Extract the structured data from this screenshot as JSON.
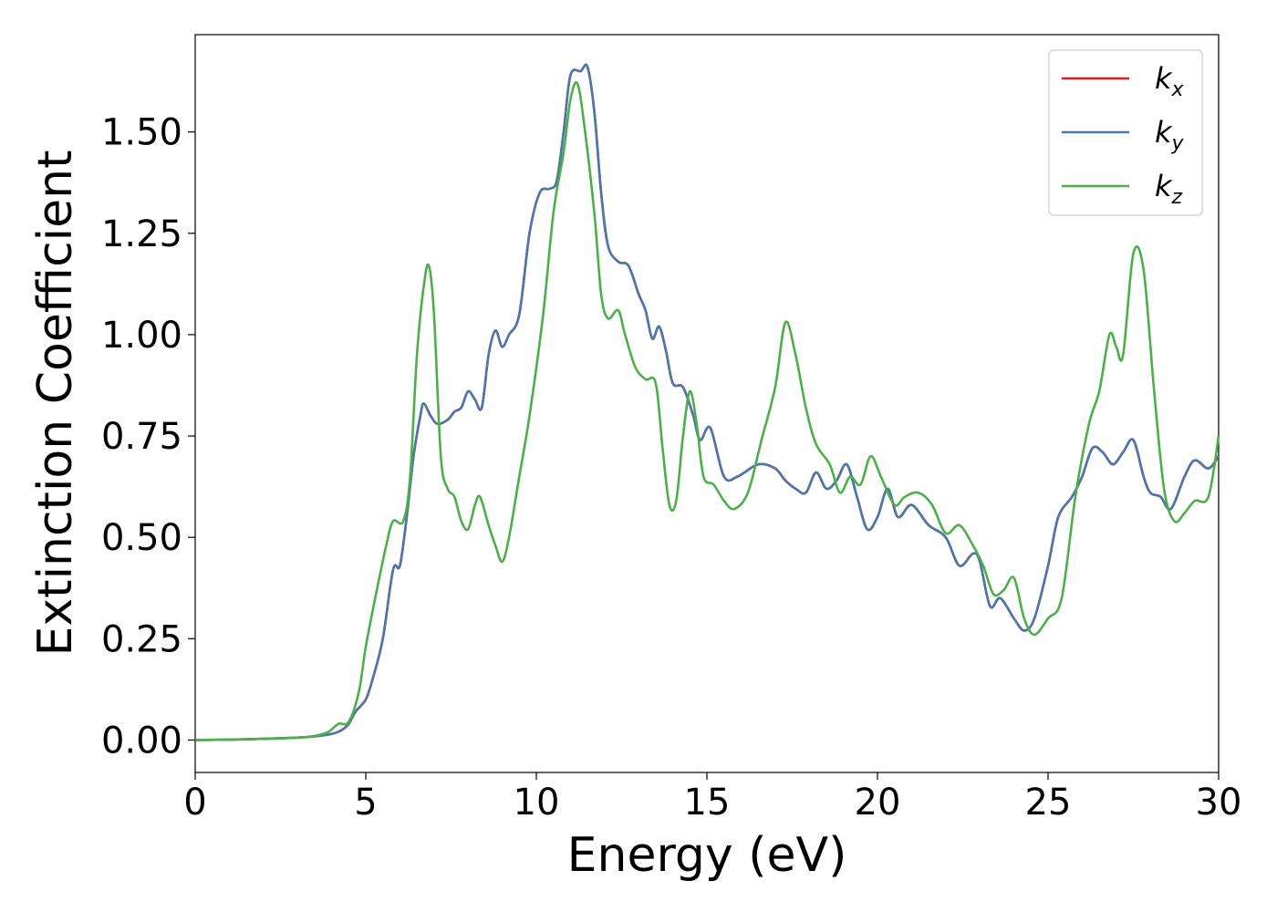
{
  "chart_data": {
    "type": "line",
    "title": "",
    "xlabel": "Energy (eV)",
    "ylabel": "Extinction Coefficient",
    "xlim": [
      0,
      30
    ],
    "ylim": [
      -0.08,
      1.74
    ],
    "xticks": [
      0,
      5,
      10,
      15,
      20,
      25,
      30
    ],
    "xtick_labels": [
      "0",
      "5",
      "10",
      "15",
      "20",
      "25",
      "30"
    ],
    "yticks": [
      0,
      0.25,
      0.5,
      0.75,
      1.0,
      1.25,
      1.5
    ],
    "ytick_labels": [
      "0.00",
      "0.25",
      "0.50",
      "0.75",
      "1.00",
      "1.25",
      "1.50"
    ],
    "grid": false,
    "legend_position": "top-right",
    "series": [
      {
        "name": "k_x",
        "label_base": "k",
        "label_sub": "x",
        "color": "#e41a1c",
        "points": [
          [
            0,
            0
          ],
          [
            1,
            0.001
          ],
          [
            2,
            0.003
          ],
          [
            3,
            0.006
          ],
          [
            3.5,
            0.009
          ],
          [
            4,
            0.015
          ],
          [
            4.3,
            0.025
          ],
          [
            4.5,
            0.04
          ],
          [
            4.7,
            0.07
          ],
          [
            5,
            0.1
          ],
          [
            5.2,
            0.15
          ],
          [
            5.5,
            0.25
          ],
          [
            5.8,
            0.42
          ],
          [
            6,
            0.43
          ],
          [
            6.2,
            0.55
          ],
          [
            6.4,
            0.7
          ],
          [
            6.6,
            0.8
          ],
          [
            6.7,
            0.83
          ],
          [
            6.9,
            0.8
          ],
          [
            7.1,
            0.78
          ],
          [
            7.4,
            0.79
          ],
          [
            7.6,
            0.81
          ],
          [
            7.8,
            0.82
          ],
          [
            8,
            0.86
          ],
          [
            8.2,
            0.84
          ],
          [
            8.4,
            0.82
          ],
          [
            8.6,
            0.95
          ],
          [
            8.8,
            1.01
          ],
          [
            9,
            0.97
          ],
          [
            9.2,
            1
          ],
          [
            9.5,
            1.05
          ],
          [
            9.8,
            1.25
          ],
          [
            10.1,
            1.35
          ],
          [
            10.4,
            1.36
          ],
          [
            10.6,
            1.38
          ],
          [
            10.8,
            1.5
          ],
          [
            11,
            1.64
          ],
          [
            11.3,
            1.65
          ],
          [
            11.5,
            1.66
          ],
          [
            11.7,
            1.55
          ],
          [
            11.9,
            1.35
          ],
          [
            12.1,
            1.22
          ],
          [
            12.4,
            1.18
          ],
          [
            12.7,
            1.17
          ],
          [
            13,
            1.1
          ],
          [
            13.2,
            1.06
          ],
          [
            13.4,
            0.99
          ],
          [
            13.6,
            1.02
          ],
          [
            13.8,
            0.96
          ],
          [
            14,
            0.88
          ],
          [
            14.3,
            0.87
          ],
          [
            14.6,
            0.8
          ],
          [
            14.8,
            0.74
          ],
          [
            15.1,
            0.77
          ],
          [
            15.5,
            0.65
          ],
          [
            15.9,
            0.65
          ],
          [
            16.5,
            0.68
          ],
          [
            17,
            0.67
          ],
          [
            17.3,
            0.64
          ],
          [
            17.6,
            0.62
          ],
          [
            17.9,
            0.61
          ],
          [
            18.2,
            0.66
          ],
          [
            18.5,
            0.62
          ],
          [
            18.8,
            0.64
          ],
          [
            19.1,
            0.68
          ],
          [
            19.4,
            0.6
          ],
          [
            19.7,
            0.52
          ],
          [
            20,
            0.55
          ],
          [
            20.3,
            0.62
          ],
          [
            20.6,
            0.55
          ],
          [
            21,
            0.58
          ],
          [
            21.5,
            0.53
          ],
          [
            22,
            0.5
          ],
          [
            22.4,
            0.43
          ],
          [
            22.8,
            0.46
          ],
          [
            23,
            0.44
          ],
          [
            23.3,
            0.33
          ],
          [
            23.6,
            0.35
          ],
          [
            24,
            0.3
          ],
          [
            24.3,
            0.27
          ],
          [
            24.6,
            0.3
          ],
          [
            25,
            0.43
          ],
          [
            25.3,
            0.55
          ],
          [
            25.7,
            0.6
          ],
          [
            26,
            0.65
          ],
          [
            26.3,
            0.72
          ],
          [
            26.6,
            0.71
          ],
          [
            26.9,
            0.68
          ],
          [
            27.2,
            0.71
          ],
          [
            27.5,
            0.74
          ],
          [
            27.8,
            0.65
          ],
          [
            28,
            0.61
          ],
          [
            28.3,
            0.6
          ],
          [
            28.6,
            0.57
          ],
          [
            29,
            0.65
          ],
          [
            29.3,
            0.69
          ],
          [
            29.7,
            0.67
          ],
          [
            30,
            0.7
          ]
        ]
      },
      {
        "name": "k_y",
        "label_base": "k",
        "label_sub": "y",
        "color": "#4a78ad",
        "points": [
          [
            0,
            0
          ],
          [
            1,
            0.001
          ],
          [
            2,
            0.003
          ],
          [
            3,
            0.006
          ],
          [
            3.5,
            0.009
          ],
          [
            4,
            0.015
          ],
          [
            4.3,
            0.025
          ],
          [
            4.5,
            0.04
          ],
          [
            4.7,
            0.07
          ],
          [
            5,
            0.1
          ],
          [
            5.2,
            0.15
          ],
          [
            5.5,
            0.25
          ],
          [
            5.8,
            0.42
          ],
          [
            6,
            0.43
          ],
          [
            6.2,
            0.55
          ],
          [
            6.4,
            0.7
          ],
          [
            6.6,
            0.8
          ],
          [
            6.7,
            0.83
          ],
          [
            6.9,
            0.8
          ],
          [
            7.1,
            0.78
          ],
          [
            7.4,
            0.79
          ],
          [
            7.6,
            0.81
          ],
          [
            7.8,
            0.82
          ],
          [
            8,
            0.86
          ],
          [
            8.2,
            0.84
          ],
          [
            8.4,
            0.82
          ],
          [
            8.6,
            0.95
          ],
          [
            8.8,
            1.01
          ],
          [
            9,
            0.97
          ],
          [
            9.2,
            1
          ],
          [
            9.5,
            1.05
          ],
          [
            9.8,
            1.25
          ],
          [
            10.1,
            1.35
          ],
          [
            10.4,
            1.36
          ],
          [
            10.6,
            1.38
          ],
          [
            10.8,
            1.5
          ],
          [
            11,
            1.64
          ],
          [
            11.3,
            1.65
          ],
          [
            11.5,
            1.66
          ],
          [
            11.7,
            1.55
          ],
          [
            11.9,
            1.35
          ],
          [
            12.1,
            1.22
          ],
          [
            12.4,
            1.18
          ],
          [
            12.7,
            1.17
          ],
          [
            13,
            1.1
          ],
          [
            13.2,
            1.06
          ],
          [
            13.4,
            0.99
          ],
          [
            13.6,
            1.02
          ],
          [
            13.8,
            0.96
          ],
          [
            14,
            0.88
          ],
          [
            14.3,
            0.87
          ],
          [
            14.6,
            0.8
          ],
          [
            14.8,
            0.74
          ],
          [
            15.1,
            0.77
          ],
          [
            15.5,
            0.65
          ],
          [
            15.9,
            0.65
          ],
          [
            16.5,
            0.68
          ],
          [
            17,
            0.67
          ],
          [
            17.3,
            0.64
          ],
          [
            17.6,
            0.62
          ],
          [
            17.9,
            0.61
          ],
          [
            18.2,
            0.66
          ],
          [
            18.5,
            0.62
          ],
          [
            18.8,
            0.64
          ],
          [
            19.1,
            0.68
          ],
          [
            19.4,
            0.6
          ],
          [
            19.7,
            0.52
          ],
          [
            20,
            0.55
          ],
          [
            20.3,
            0.62
          ],
          [
            20.6,
            0.55
          ],
          [
            21,
            0.58
          ],
          [
            21.5,
            0.53
          ],
          [
            22,
            0.5
          ],
          [
            22.4,
            0.43
          ],
          [
            22.8,
            0.46
          ],
          [
            23,
            0.44
          ],
          [
            23.3,
            0.33
          ],
          [
            23.6,
            0.35
          ],
          [
            24,
            0.3
          ],
          [
            24.3,
            0.27
          ],
          [
            24.6,
            0.3
          ],
          [
            25,
            0.43
          ],
          [
            25.3,
            0.55
          ],
          [
            25.7,
            0.6
          ],
          [
            26,
            0.65
          ],
          [
            26.3,
            0.72
          ],
          [
            26.6,
            0.71
          ],
          [
            26.9,
            0.68
          ],
          [
            27.2,
            0.71
          ],
          [
            27.5,
            0.74
          ],
          [
            27.8,
            0.65
          ],
          [
            28,
            0.61
          ],
          [
            28.3,
            0.6
          ],
          [
            28.6,
            0.57
          ],
          [
            29,
            0.65
          ],
          [
            29.3,
            0.69
          ],
          [
            29.7,
            0.67
          ],
          [
            30,
            0.7
          ]
        ]
      },
      {
        "name": "k_z",
        "label_base": "k",
        "label_sub": "z",
        "color": "#4daf4a",
        "points": [
          [
            0,
            0
          ],
          [
            1,
            0.001
          ],
          [
            2,
            0.003
          ],
          [
            3,
            0.006
          ],
          [
            3.5,
            0.01
          ],
          [
            3.9,
            0.02
          ],
          [
            4.2,
            0.04
          ],
          [
            4.5,
            0.045
          ],
          [
            4.8,
            0.12
          ],
          [
            5,
            0.23
          ],
          [
            5.3,
            0.36
          ],
          [
            5.6,
            0.48
          ],
          [
            5.8,
            0.54
          ],
          [
            6.1,
            0.54
          ],
          [
            6.3,
            0.65
          ],
          [
            6.5,
            0.95
          ],
          [
            6.7,
            1.12
          ],
          [
            6.85,
            1.17
          ],
          [
            7,
            1.05
          ],
          [
            7.2,
            0.7
          ],
          [
            7.4,
            0.62
          ],
          [
            7.6,
            0.6
          ],
          [
            7.8,
            0.54
          ],
          [
            8,
            0.52
          ],
          [
            8.2,
            0.58
          ],
          [
            8.35,
            0.6
          ],
          [
            8.6,
            0.53
          ],
          [
            8.8,
            0.48
          ],
          [
            9,
            0.44
          ],
          [
            9.2,
            0.5
          ],
          [
            9.5,
            0.65
          ],
          [
            9.8,
            0.8
          ],
          [
            10.2,
            1.05
          ],
          [
            10.5,
            1.3
          ],
          [
            10.8,
            1.45
          ],
          [
            11,
            1.58
          ],
          [
            11.2,
            1.62
          ],
          [
            11.4,
            1.52
          ],
          [
            11.7,
            1.3
          ],
          [
            11.9,
            1.1
          ],
          [
            12.1,
            1.04
          ],
          [
            12.4,
            1.06
          ],
          [
            12.6,
            1
          ],
          [
            12.9,
            0.92
          ],
          [
            13.2,
            0.89
          ],
          [
            13.5,
            0.88
          ],
          [
            13.7,
            0.72
          ],
          [
            13.9,
            0.58
          ],
          [
            14.1,
            0.59
          ],
          [
            14.3,
            0.75
          ],
          [
            14.5,
            0.86
          ],
          [
            14.7,
            0.78
          ],
          [
            14.9,
            0.65
          ],
          [
            15.2,
            0.63
          ],
          [
            15.5,
            0.59
          ],
          [
            15.8,
            0.57
          ],
          [
            16.2,
            0.61
          ],
          [
            16.6,
            0.74
          ],
          [
            17,
            0.87
          ],
          [
            17.3,
            1.03
          ],
          [
            17.6,
            0.95
          ],
          [
            17.9,
            0.82
          ],
          [
            18.2,
            0.73
          ],
          [
            18.6,
            0.68
          ],
          [
            18.9,
            0.61
          ],
          [
            19.2,
            0.65
          ],
          [
            19.5,
            0.63
          ],
          [
            19.8,
            0.7
          ],
          [
            20.1,
            0.65
          ],
          [
            20.5,
            0.58
          ],
          [
            20.8,
            0.6
          ],
          [
            21.2,
            0.61
          ],
          [
            21.6,
            0.58
          ],
          [
            22,
            0.51
          ],
          [
            22.4,
            0.53
          ],
          [
            22.8,
            0.48
          ],
          [
            23.1,
            0.43
          ],
          [
            23.4,
            0.36
          ],
          [
            23.7,
            0.37
          ],
          [
            24,
            0.4
          ],
          [
            24.3,
            0.3
          ],
          [
            24.6,
            0.26
          ],
          [
            25,
            0.3
          ],
          [
            25.4,
            0.35
          ],
          [
            25.8,
            0.6
          ],
          [
            26.2,
            0.78
          ],
          [
            26.5,
            0.86
          ],
          [
            26.8,
            1.0
          ],
          [
            27,
            0.97
          ],
          [
            27.2,
            0.95
          ],
          [
            27.5,
            1.2
          ],
          [
            27.8,
            1.16
          ],
          [
            28.1,
            0.87
          ],
          [
            28.4,
            0.62
          ],
          [
            28.7,
            0.54
          ],
          [
            29,
            0.56
          ],
          [
            29.3,
            0.59
          ],
          [
            29.7,
            0.6
          ],
          [
            30,
            0.75
          ]
        ]
      }
    ]
  }
}
